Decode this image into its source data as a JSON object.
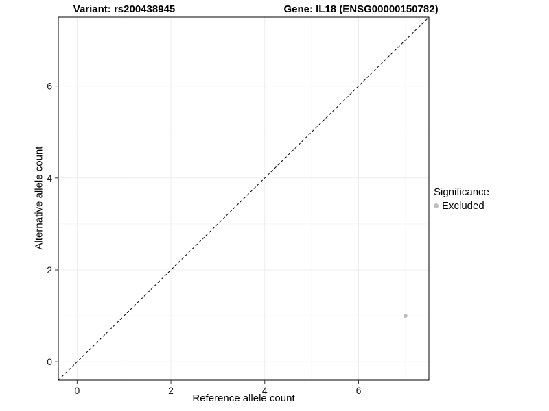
{
  "chart_data": {
    "type": "scatter",
    "titles": {
      "left": "Variant: rs200438945",
      "right": "Gene: IL18 (ENSG00000150782)"
    },
    "xlabel": "Reference allele count",
    "ylabel": "Alternative allele count",
    "xlim": [
      -0.4,
      7.5
    ],
    "ylim": [
      -0.4,
      7.5
    ],
    "x_ticks": [
      0,
      2,
      4,
      6
    ],
    "y_ticks": [
      0,
      2,
      4,
      6
    ],
    "x_minor_ticks": [
      1,
      3,
      5,
      7
    ],
    "y_minor_ticks": [
      1,
      3,
      5,
      7
    ],
    "grid": "major+minor",
    "panel_border_color": "#000000",
    "grid_major_color": "#ebebeb",
    "grid_minor_color": "#f5f5f5",
    "reference_line": {
      "type": "identity",
      "style": "dashed",
      "x1": -0.4,
      "y1": -0.4,
      "x2": 7.5,
      "y2": 7.5,
      "color": "#000000"
    },
    "points": [
      {
        "x": 7,
        "y": 1,
        "significance": "Excluded",
        "color": "#bebebe",
        "radius": 3
      }
    ],
    "legend": {
      "title": "Significance",
      "position": "right",
      "items": [
        {
          "label": "Excluded",
          "color": "#bebebe"
        }
      ]
    }
  }
}
